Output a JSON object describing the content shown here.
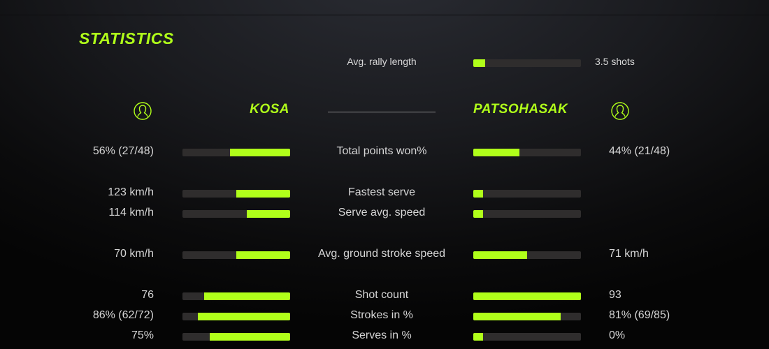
{
  "title": "STATISTICS",
  "accent": "#b0ff1a",
  "rally": {
    "label": "Avg. rally length",
    "value": "3.5 shots",
    "fill": 11
  },
  "players": {
    "left": {
      "name": "KOSA",
      "icon": "user-icon"
    },
    "right": {
      "name": "PATSOHASAK",
      "icon": "user-icon"
    }
  },
  "rows": [
    {
      "label": "Total points won%",
      "left": "56% (27/48)",
      "right": "44% (21/48)",
      "left_fill": 56,
      "right_fill": 43
    },
    {
      "label": "Fastest serve",
      "left": "123 km/h",
      "right": "",
      "left_fill": 50,
      "right_fill": 9
    },
    {
      "label": "Serve avg. speed",
      "left": "114 km/h",
      "right": "",
      "left_fill": 40,
      "right_fill": 9
    },
    {
      "label": "Avg. ground stroke speed",
      "left": "70 km/h",
      "right": "71 km/h",
      "left_fill": 50,
      "right_fill": 50
    },
    {
      "label": "Shot count",
      "left": "76",
      "right": "93",
      "left_fill": 80,
      "right_fill": 100
    },
    {
      "label": "Strokes in %",
      "left": "86% (62/72)",
      "right": "81% (69/85)",
      "left_fill": 86,
      "right_fill": 81
    },
    {
      "label": "Serves in %",
      "left": "75%",
      "right": "0%",
      "left_fill": 75,
      "right_fill": 9
    }
  ]
}
